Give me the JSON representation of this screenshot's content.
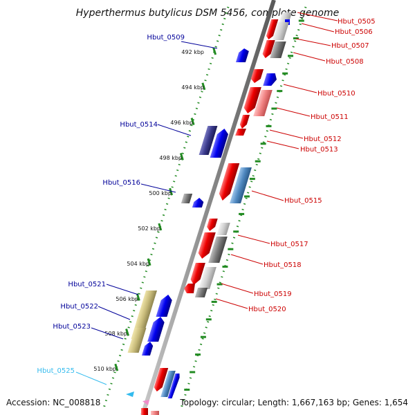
{
  "title": "Hyperthermus butylicus DSM 5456, complete genome",
  "footer": {
    "accession": "Accession: NC_008818",
    "summary": "Topology: circular; Length: 1,667,163 bp; Genes: 1,654"
  },
  "scale_labels": [
    "492 kbp",
    "494 kbp",
    "496 kbp",
    "498 kbp",
    "500 kbp",
    "502 kbp",
    "504 kbp",
    "506 kbp",
    "508 kbp",
    "510 kbp"
  ],
  "genes_right": [
    "Hbut_0505",
    "Hbut_0506",
    "Hbut_0507",
    "Hbut_0508",
    "Hbut_0510",
    "Hbut_0511",
    "Hbut_0512",
    "Hbut_0513",
    "Hbut_0515",
    "Hbut_0517",
    "Hbut_0518",
    "Hbut_0519",
    "Hbut_0520"
  ],
  "genes_left": [
    "Hbut_0509",
    "Hbut_0514",
    "Hbut_0516",
    "Hbut_0521",
    "Hbut_0522",
    "Hbut_0523",
    "Hbut_0525"
  ],
  "colors": {
    "right_label": "#cc0000",
    "left_label": "#000099",
    "highlight_label": "#33bbee",
    "backbone": "#808080",
    "tick": "#228b22",
    "red": "#ee0000",
    "blue": "#0000ee",
    "grey": "#808080",
    "light_grey": "#c8c8c8",
    "pink": "#f08080",
    "steel": "#4f88c0",
    "slate": "#3a3a8c",
    "olive": "#c8bb7a"
  }
}
